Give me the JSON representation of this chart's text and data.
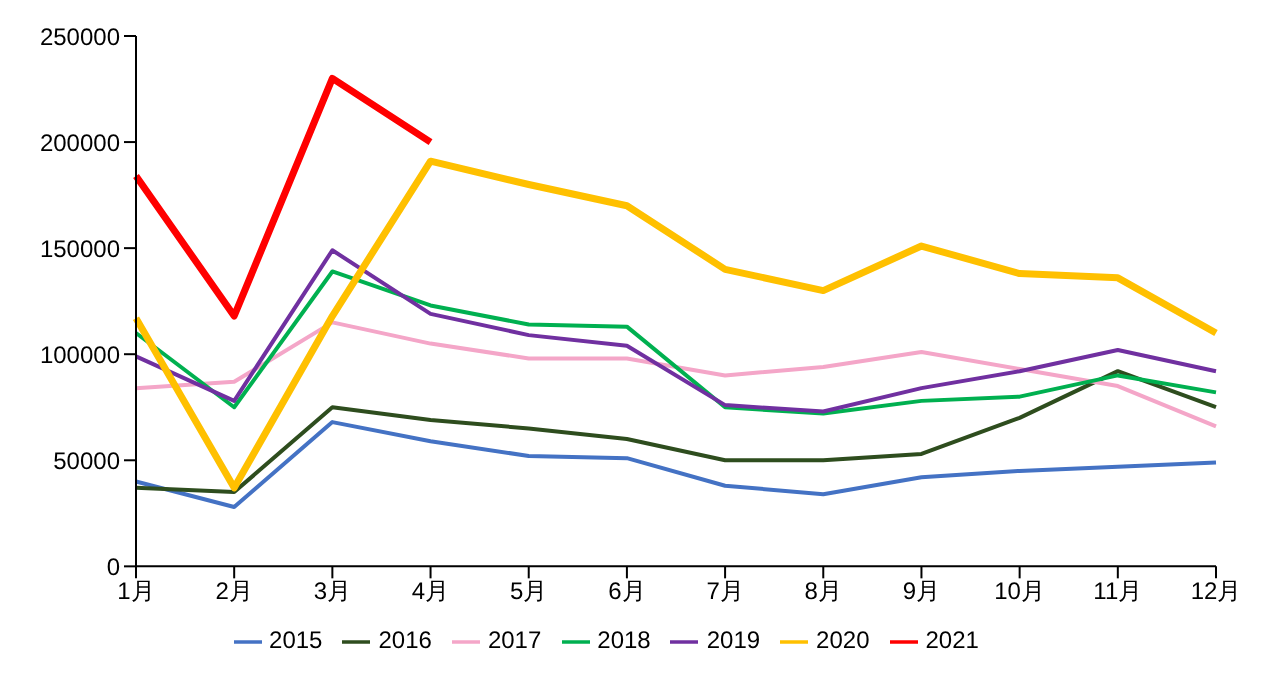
{
  "chart_data": {
    "type": "line",
    "categories": [
      "1月",
      "2月",
      "3月",
      "4月",
      "5月",
      "6月",
      "7月",
      "8月",
      "9月",
      "10月",
      "11月",
      "12月"
    ],
    "ylim": [
      0,
      250000
    ],
    "yticks": [
      0,
      50000,
      100000,
      150000,
      200000,
      250000
    ],
    "grid": false,
    "legend": "bottom",
    "marker": "none",
    "line_style": "solid",
    "series": [
      {
        "name": "2015",
        "color": "#4472c4",
        "values": [
          40000,
          28000,
          68000,
          59000,
          52000,
          51000,
          38000,
          34000,
          42000,
          45000,
          47000,
          49000
        ]
      },
      {
        "name": "2016",
        "color": "#2e4d1e",
        "values": [
          37000,
          35000,
          75000,
          69000,
          65000,
          60000,
          50000,
          50000,
          53000,
          70000,
          92000,
          75000
        ]
      },
      {
        "name": "2017",
        "color": "#f4a6c8",
        "values": [
          84000,
          87000,
          115000,
          105000,
          98000,
          98000,
          90000,
          94000,
          101000,
          93000,
          85000,
          66000
        ]
      },
      {
        "name": "2018",
        "color": "#00b050",
        "values": [
          110000,
          75000,
          139000,
          123000,
          114000,
          113000,
          75000,
          72000,
          78000,
          80000,
          90000,
          82000
        ]
      },
      {
        "name": "2019",
        "color": "#7030a0",
        "values": [
          99000,
          78000,
          149000,
          119000,
          109000,
          104000,
          76000,
          73000,
          84000,
          92000,
          102000,
          92000
        ]
      },
      {
        "name": "2020",
        "color": "#ffc000",
        "values": [
          117000,
          37000,
          118000,
          191000,
          180000,
          170000,
          140000,
          130000,
          151000,
          138000,
          136000,
          110000
        ]
      },
      {
        "name": "2021",
        "color": "#ff0000",
        "values": [
          184000,
          118000,
          230000,
          200000,
          null,
          null,
          null,
          null,
          null,
          null,
          null,
          null
        ]
      }
    ]
  }
}
